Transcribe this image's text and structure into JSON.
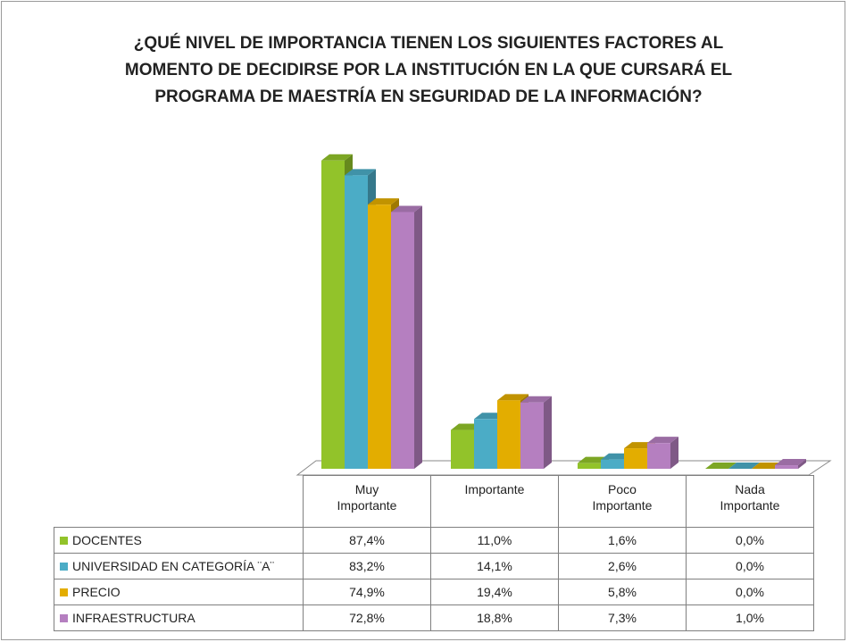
{
  "chart_data": {
    "type": "bar3d",
    "title": "¿QUÉ NIVEL DE IMPORTANCIA TIENEN LOS SIGUIENTES FACTORES AL MOMENTO DE DECIDIRSE POR LA INSTITUCIÓN EN LA QUE CURSARÁ EL PROGRAMA DE MAESTRÍA EN SEGURIDAD DE LA INFORMACIÓN?",
    "categories": [
      "Muy Importante",
      "Importante",
      "Poco Importante",
      "Nada Importante"
    ],
    "ylim": [
      0,
      100
    ],
    "series": [
      {
        "name": "DOCENTES",
        "color": "#92c32a",
        "values": [
          87.4,
          11.0,
          1.6,
          0.0
        ],
        "value_labels": [
          "87,4%",
          "11,0%",
          "1,6%",
          "0,0%"
        ]
      },
      {
        "name": "UNIVERSIDAD EN CATEGORÍA ¨A¨",
        "color": "#4bacc6",
        "values": [
          83.2,
          14.1,
          2.6,
          0.0
        ],
        "value_labels": [
          "83,2%",
          "14,1%",
          "2,6%",
          "0,0%"
        ]
      },
      {
        "name": "PRECIO",
        "color": "#e3ad00",
        "values": [
          74.9,
          19.4,
          5.8,
          0.0
        ],
        "value_labels": [
          "74,9%",
          "19,4%",
          "5,8%",
          "0,0%"
        ]
      },
      {
        "name": "INFRAESTRUCTURA",
        "color": "#b57fc0",
        "values": [
          72.8,
          18.8,
          7.3,
          1.0
        ],
        "value_labels": [
          "72,8%",
          "18,8%",
          "7,3%",
          "1,0%"
        ]
      }
    ]
  }
}
